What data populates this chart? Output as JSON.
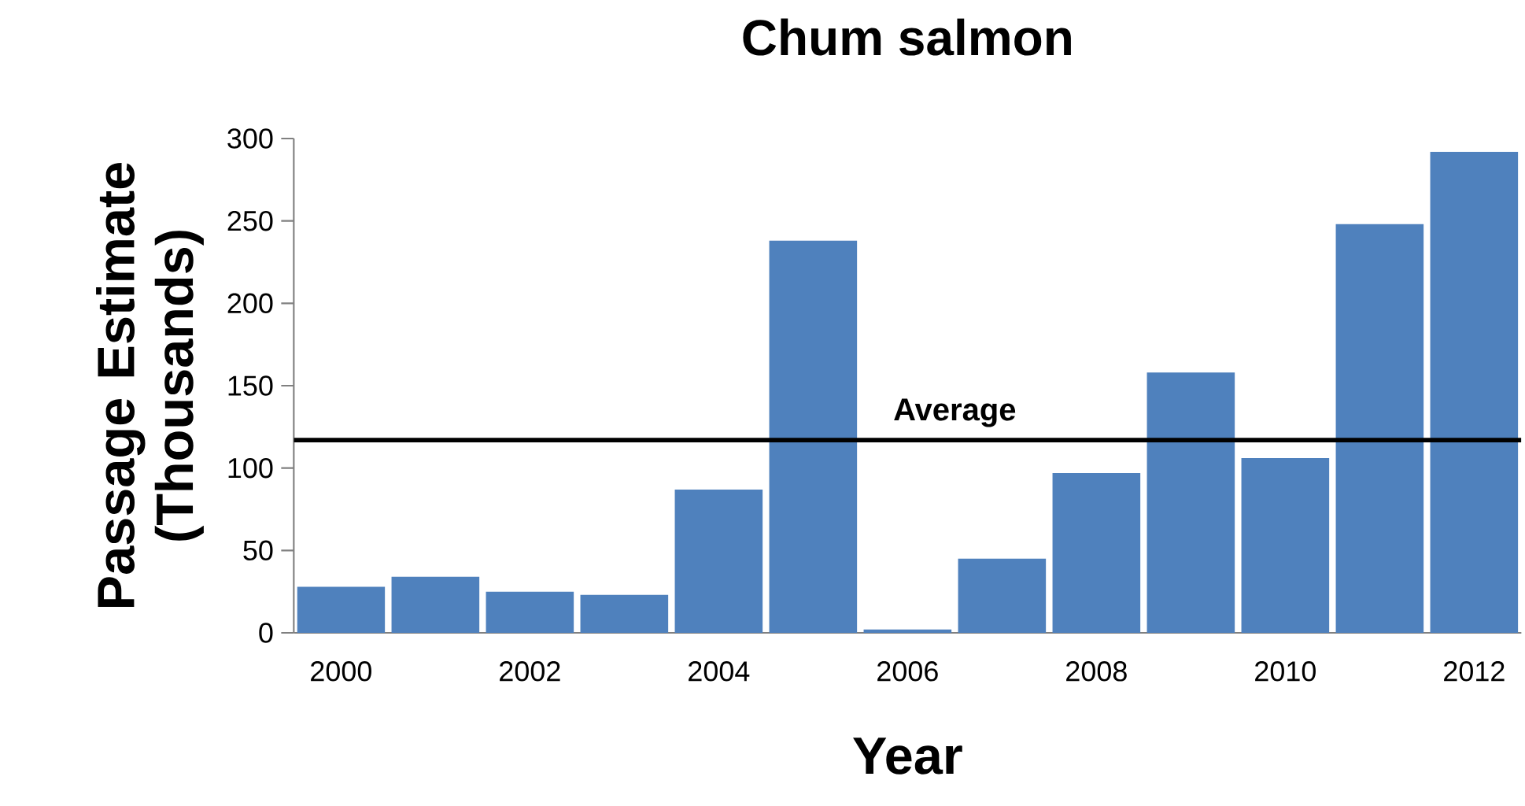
{
  "chart_data": {
    "type": "bar",
    "title": "Chum salmon",
    "xlabel": "Year",
    "ylabel": "Passage Estimate (Thousands)",
    "categories": [
      "2000",
      null,
      "2002",
      null,
      "2004",
      null,
      "2006",
      null,
      "2008",
      null,
      "2010",
      null,
      "2012"
    ],
    "values": [
      28,
      34,
      25,
      23,
      87,
      238,
      2,
      45,
      97,
      158,
      106,
      248,
      292
    ],
    "color": "#4f81bd",
    "ylim": [
      0,
      300
    ],
    "yticks": [
      0,
      50,
      100,
      150,
      200,
      250,
      300
    ],
    "ref_lines": [
      {
        "axis": "y",
        "value": 117,
        "label": "Average",
        "color": "#000000"
      }
    ]
  }
}
